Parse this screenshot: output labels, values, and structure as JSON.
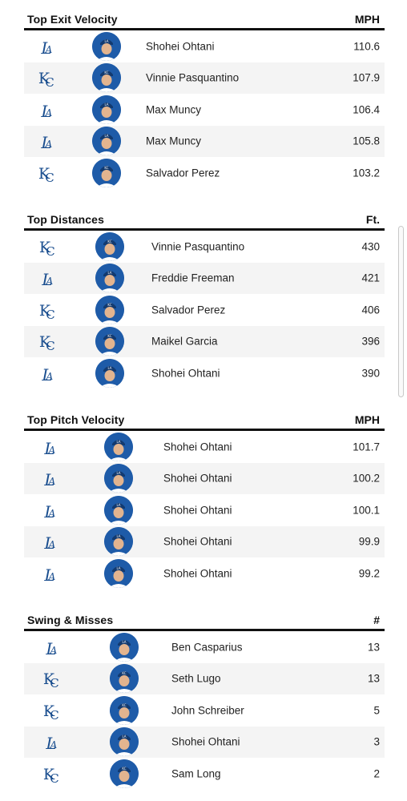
{
  "colors": {
    "team_blue": "#1a4e8f",
    "avatar_blue": "#1e5ba8",
    "row_alt": "#f4f4f4"
  },
  "sections": [
    {
      "title": "Top Exit Velocity",
      "unit": "MPH",
      "rows": [
        {
          "team": "LA",
          "player": "Shohei Ohtani",
          "value": "110.6"
        },
        {
          "team": "KC",
          "player": "Vinnie Pasquantino",
          "value": "107.9"
        },
        {
          "team": "LA",
          "player": "Max Muncy",
          "value": "106.4"
        },
        {
          "team": "LA",
          "player": "Max Muncy",
          "value": "105.8"
        },
        {
          "team": "KC",
          "player": "Salvador Perez",
          "value": "103.2"
        }
      ]
    },
    {
      "title": "Top Distances",
      "unit": "Ft.",
      "rows": [
        {
          "team": "KC",
          "player": "Vinnie Pasquantino",
          "value": "430"
        },
        {
          "team": "LA",
          "player": "Freddie Freeman",
          "value": "421"
        },
        {
          "team": "KC",
          "player": "Salvador Perez",
          "value": "406"
        },
        {
          "team": "KC",
          "player": "Maikel Garcia",
          "value": "396"
        },
        {
          "team": "LA",
          "player": "Shohei Ohtani",
          "value": "390"
        }
      ]
    },
    {
      "title": "Top Pitch Velocity",
      "unit": "MPH",
      "rows": [
        {
          "team": "LA",
          "player": "Shohei Ohtani",
          "value": "101.7"
        },
        {
          "team": "LA",
          "player": "Shohei Ohtani",
          "value": "100.2"
        },
        {
          "team": "LA",
          "player": "Shohei Ohtani",
          "value": "100.1"
        },
        {
          "team": "LA",
          "player": "Shohei Ohtani",
          "value": "99.9"
        },
        {
          "team": "LA",
          "player": "Shohei Ohtani",
          "value": "99.2"
        }
      ]
    },
    {
      "title": "Swing & Misses",
      "unit": "#",
      "rows": [
        {
          "team": "LA",
          "player": "Ben Casparius",
          "value": "13"
        },
        {
          "team": "KC",
          "player": "Seth Lugo",
          "value": "13"
        },
        {
          "team": "KC",
          "player": "John Schreiber",
          "value": "5"
        },
        {
          "team": "LA",
          "player": "Shohei Ohtani",
          "value": "3"
        },
        {
          "team": "KC",
          "player": "Sam Long",
          "value": "2"
        }
      ]
    }
  ]
}
